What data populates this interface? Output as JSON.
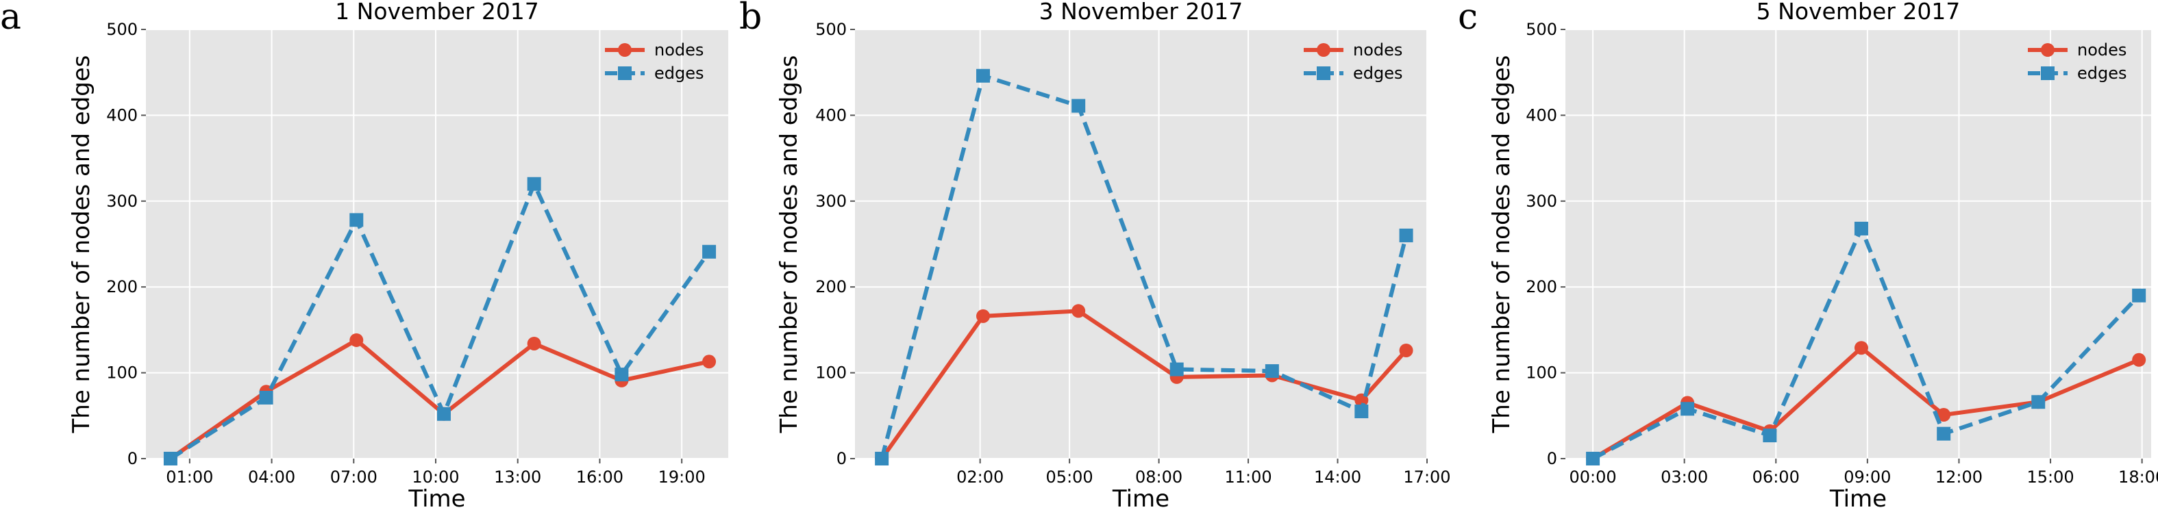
{
  "chart_data": [
    {
      "type": "line",
      "panel_letter": "a",
      "title": "1 November 2017",
      "xlabel": "Time",
      "ylabel": "The number of nodes and edges",
      "ylim": [
        0,
        500
      ],
      "yticks": [
        0,
        100,
        200,
        300,
        400,
        500
      ],
      "xlim": [
        -0.6,
        20.7
      ],
      "xticks": [
        {
          "x": 1,
          "label": "01:00"
        },
        {
          "x": 4,
          "label": "04:00"
        },
        {
          "x": 7,
          "label": "07:00"
        },
        {
          "x": 10,
          "label": "10:00"
        },
        {
          "x": 13,
          "label": "13:00"
        },
        {
          "x": 16,
          "label": "16:00"
        },
        {
          "x": 19,
          "label": "19:00"
        }
      ],
      "grid": true,
      "legend_position": "top-right",
      "x": [
        0.3,
        3.8,
        7.1,
        10.3,
        13.6,
        16.8,
        20.0
      ],
      "series": [
        {
          "name": "nodes",
          "color": "#E24A33",
          "style": "solid",
          "marker": "circle",
          "values": [
            0,
            78,
            138,
            52,
            134,
            91,
            113
          ]
        },
        {
          "name": "edges",
          "color": "#348ABD",
          "style": "dashed",
          "marker": "square",
          "values": [
            0,
            71,
            278,
            52,
            320,
            98,
            241
          ]
        }
      ]
    },
    {
      "type": "line",
      "panel_letter": "b",
      "title": "3 November 2017",
      "xlabel": "Time",
      "ylabel": "The number of nodes and edges",
      "ylim": [
        0,
        500
      ],
      "yticks": [
        0,
        100,
        200,
        300,
        400,
        500
      ],
      "xlim": [
        -2.2,
        17.0
      ],
      "xticks": [
        {
          "x": 2,
          "label": "02:00"
        },
        {
          "x": 5,
          "label": "05:00"
        },
        {
          "x": 8,
          "label": "08:00"
        },
        {
          "x": 11,
          "label": "11:00"
        },
        {
          "x": 14,
          "label": "14:00"
        },
        {
          "x": 17,
          "label": "17:00"
        }
      ],
      "grid": true,
      "legend_position": "top-right",
      "x": [
        -1.3,
        2.1,
        5.3,
        8.6,
        11.8,
        14.8,
        16.3
      ],
      "series": [
        {
          "name": "nodes",
          "color": "#E24A33",
          "style": "solid",
          "marker": "circle",
          "values": [
            0,
            166,
            172,
            95,
            97,
            68,
            126
          ]
        },
        {
          "name": "edges",
          "color": "#348ABD",
          "style": "dashed",
          "marker": "square",
          "values": [
            0,
            446,
            411,
            104,
            102,
            55,
            260
          ]
        }
      ]
    },
    {
      "type": "line",
      "panel_letter": "c",
      "title": "5 November 2017",
      "xlabel": "Time",
      "ylabel": "The number of nodes and edges",
      "ylim": [
        0,
        500
      ],
      "yticks": [
        0,
        100,
        200,
        300,
        400,
        500
      ],
      "xlim": [
        -0.9,
        18.3
      ],
      "xticks": [
        {
          "x": 0,
          "label": "00:00"
        },
        {
          "x": 3,
          "label": "03:00"
        },
        {
          "x": 6,
          "label": "06:00"
        },
        {
          "x": 9,
          "label": "09:00"
        },
        {
          "x": 12,
          "label": "12:00"
        },
        {
          "x": 15,
          "label": "15:00"
        },
        {
          "x": 18,
          "label": "18:00"
        }
      ],
      "grid": true,
      "legend_position": "top-right",
      "x": [
        0.0,
        3.1,
        5.8,
        8.8,
        11.5,
        14.6,
        17.9
      ],
      "series": [
        {
          "name": "nodes",
          "color": "#E24A33",
          "style": "solid",
          "marker": "circle",
          "values": [
            0,
            65,
            32,
            129,
            51,
            66,
            115
          ]
        },
        {
          "name": "edges",
          "color": "#348ABD",
          "style": "dashed",
          "marker": "square",
          "values": [
            0,
            58,
            27,
            268,
            29,
            66,
            190
          ]
        }
      ]
    }
  ]
}
